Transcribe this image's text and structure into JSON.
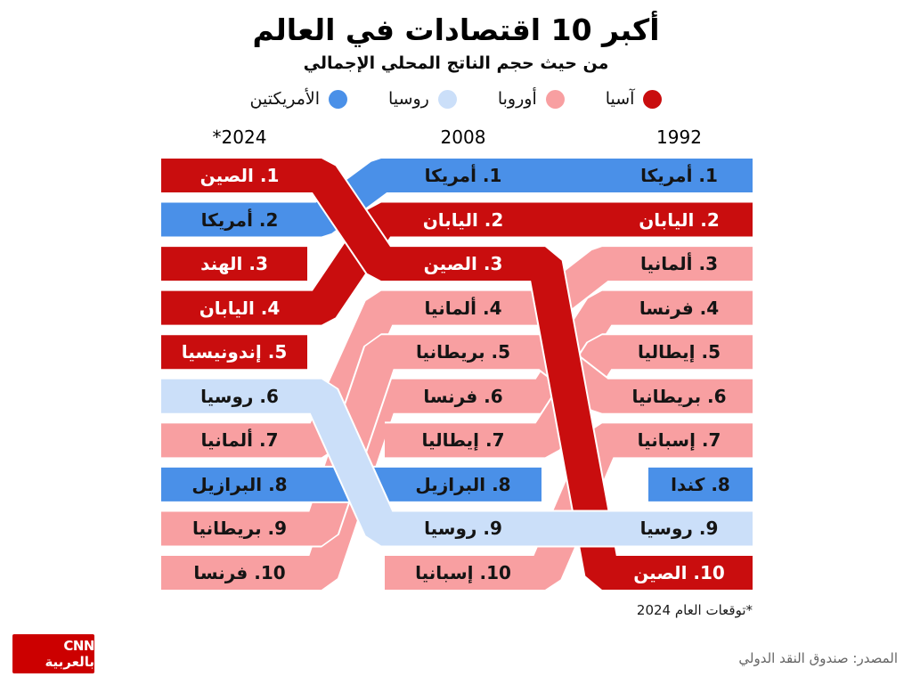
{
  "title": "أكبر 10 اقتصادات في العالم",
  "subtitle": "من حيث حجم الناتج المحلي الإجمالي",
  "footnote": "*توقعات العام 2024",
  "source": "المصدر: صندوق النقد الدولي",
  "logo_text": "CNN بالعربية",
  "colors": {
    "asia": "#c90d0e",
    "europe": "#f89fa1",
    "russia": "#cbdff9",
    "americas": "#4a90e8",
    "text_on_dark": "#ffffff",
    "text_on_light": "#141414",
    "logo_bg": "#cc0000"
  },
  "legend": [
    {
      "label": "آسيا",
      "region": "asia"
    },
    {
      "label": "أوروبا",
      "region": "europe"
    },
    {
      "label": "روسيا",
      "region": "russia"
    },
    {
      "label": "الأمريكتين",
      "region": "americas"
    }
  ],
  "chart_data": {
    "type": "bump",
    "direction": "rtl",
    "note": "ranking of top 10 economies by GDP; columns right-to-left 1992, 2008, *2024",
    "columns": [
      {
        "key": "1992",
        "label": "1992"
      },
      {
        "key": "2008",
        "label": "2008"
      },
      {
        "key": "2024",
        "label": "*2024"
      }
    ],
    "countries": [
      {
        "slug": "usa",
        "name": "أمريكا",
        "region": "americas",
        "ranks": {
          "1992": 1,
          "2008": 1,
          "2024": 2
        }
      },
      {
        "slug": "japan",
        "name": "اليابان",
        "region": "asia",
        "ranks": {
          "1992": 2,
          "2008": 2,
          "2024": 4
        }
      },
      {
        "slug": "germany",
        "name": "ألمانيا",
        "region": "europe",
        "ranks": {
          "1992": 3,
          "2008": 4,
          "2024": 7
        }
      },
      {
        "slug": "france",
        "name": "فرنسا",
        "region": "europe",
        "ranks": {
          "1992": 4,
          "2008": 6,
          "2024": 10
        }
      },
      {
        "slug": "italy",
        "name": "إيطاليا",
        "region": "europe",
        "ranks": {
          "1992": 5,
          "2008": 7,
          "2024": null
        }
      },
      {
        "slug": "uk",
        "name": "بريطانيا",
        "region": "europe",
        "ranks": {
          "1992": 6,
          "2008": 5,
          "2024": 9
        }
      },
      {
        "slug": "spain",
        "name": "إسبانيا",
        "region": "europe",
        "ranks": {
          "1992": 7,
          "2008": 10,
          "2024": null
        }
      },
      {
        "slug": "canada",
        "name": "كندا",
        "region": "americas",
        "ranks": {
          "1992": 8,
          "2008": null,
          "2024": null
        }
      },
      {
        "slug": "russia",
        "name": "روسيا",
        "region": "russia",
        "ranks": {
          "1992": 9,
          "2008": 9,
          "2024": 6
        }
      },
      {
        "slug": "china",
        "name": "الصين",
        "region": "asia",
        "ranks": {
          "1992": 10,
          "2008": 3,
          "2024": 1
        }
      },
      {
        "slug": "india",
        "name": "الهند",
        "region": "asia",
        "ranks": {
          "1992": null,
          "2008": null,
          "2024": 3
        }
      },
      {
        "slug": "indonesia",
        "name": "إندونيسيا",
        "region": "asia",
        "ranks": {
          "1992": null,
          "2008": null,
          "2024": 5
        }
      },
      {
        "slug": "brazil",
        "name": "البرازيل",
        "region": "americas",
        "ranks": {
          "1992": null,
          "2008": 8,
          "2024": 8
        }
      }
    ]
  }
}
